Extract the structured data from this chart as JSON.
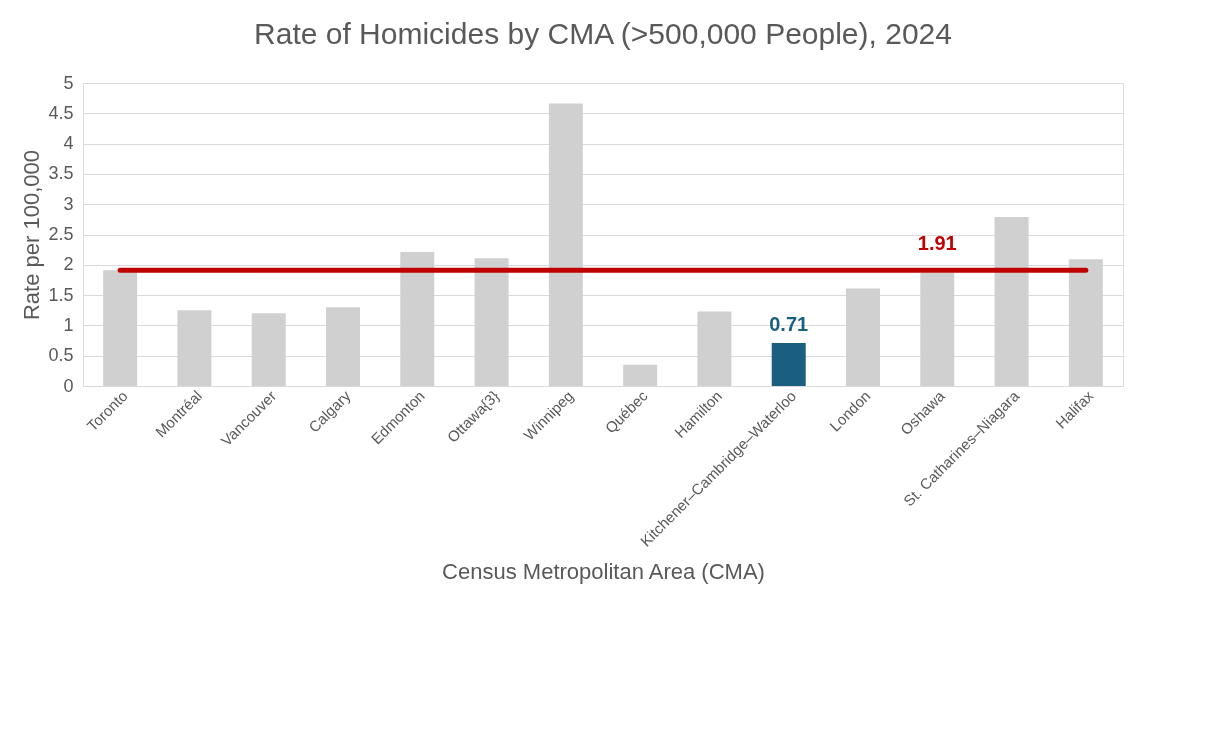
{
  "chart_data": {
    "type": "bar",
    "title": "Rate of Homicides by CMA (>500,000 People), 2024",
    "xlabel": "Census Metropolitan Area (CMA)",
    "ylabel": "Rate per 100,000",
    "categories": [
      "Toronto",
      "Montréal",
      "Vancouver",
      "Calgary",
      "Edmonton",
      "Ottawa{3}",
      "Winnipeg",
      "Québec",
      "Hamilton",
      "Kitchener–Cambridge–Waterloo",
      "London",
      "Oshawa",
      "St. Catharines–Niagara",
      "Halifax"
    ],
    "values": [
      1.91,
      1.25,
      1.2,
      1.3,
      2.21,
      2.11,
      4.66,
      0.35,
      1.23,
      0.71,
      1.61,
      1.87,
      2.79,
      2.09
    ],
    "colors": [
      "#d0d0d0",
      "#d0d0d0",
      "#d0d0d0",
      "#d0d0d0",
      "#d0d0d0",
      "#d0d0d0",
      "#d0d0d0",
      "#d0d0d0",
      "#d0d0d0",
      "#1a5e80",
      "#d0d0d0",
      "#d0d0d0",
      "#d0d0d0",
      "#d0d0d0"
    ],
    "value_labels": [
      null,
      null,
      null,
      null,
      null,
      null,
      null,
      null,
      null,
      "0.71",
      null,
      null,
      null,
      null
    ],
    "ylim": [
      0,
      5
    ],
    "yticks": [
      0,
      0.5,
      1,
      1.5,
      2,
      2.5,
      3,
      3.5,
      4,
      4.5,
      5
    ],
    "grid": "y",
    "ref_lines": [
      {
        "axis": "y",
        "value": 1.91,
        "label": "1.91",
        "color": "#c00000",
        "line_style": "solid"
      }
    ]
  }
}
